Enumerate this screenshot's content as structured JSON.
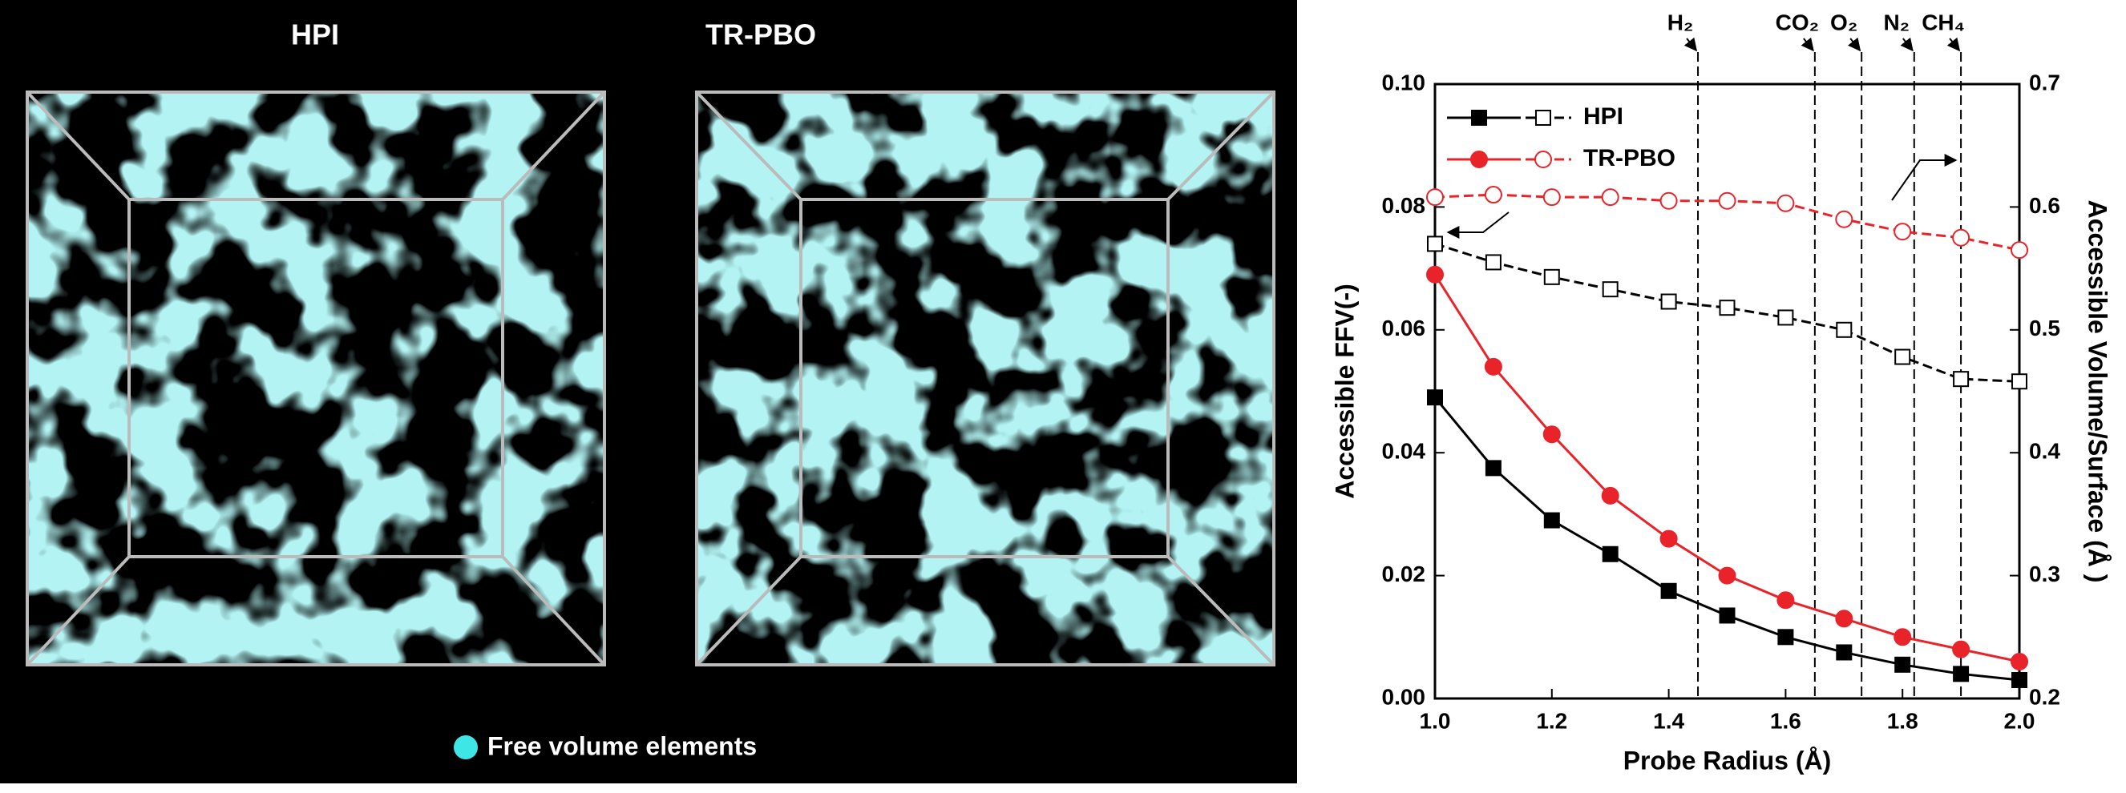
{
  "panels": {
    "left_title": "HPI",
    "right_title": "TR-PBO",
    "legend": "Free volume elements"
  },
  "chart_data": {
    "type": "line",
    "xlabel": "Probe Radius (Å)",
    "ylabel": "Accessible FFV(-)",
    "y2label": "Accessible Volume/Surface (Å )",
    "x": [
      1.0,
      1.1,
      1.2,
      1.3,
      1.4,
      1.5,
      1.6,
      1.7,
      1.8,
      1.9,
      2.0
    ],
    "series": [
      {
        "name": "HPI",
        "color": "#000000",
        "marker": "square",
        "filled": true,
        "dashed": false,
        "axis": "y",
        "values": [
          0.049,
          0.0375,
          0.029,
          0.0235,
          0.0175,
          0.0135,
          0.01,
          0.0075,
          0.0055,
          0.004,
          0.003
        ]
      },
      {
        "name": "TR-PBO",
        "color": "#e8242a",
        "marker": "circle",
        "filled": true,
        "dashed": false,
        "axis": "y",
        "values": [
          0.069,
          0.054,
          0.043,
          0.033,
          0.026,
          0.02,
          0.016,
          0.013,
          0.01,
          0.008,
          0.006
        ]
      },
      {
        "color": "#000000",
        "marker": "square",
        "filled": false,
        "dashed": true,
        "axis": "y2",
        "values": [
          0.57,
          0.555,
          0.543,
          0.533,
          0.523,
          0.518,
          0.51,
          0.5,
          0.478,
          0.46,
          0.458
        ]
      },
      {
        "color": "#e8242a",
        "marker": "circle",
        "filled": false,
        "dashed": true,
        "axis": "y2",
        "values": [
          0.608,
          0.61,
          0.608,
          0.608,
          0.605,
          0.605,
          0.603,
          0.59,
          0.58,
          0.575,
          0.565
        ]
      }
    ],
    "xlim": [
      1.0,
      2.0
    ],
    "xticks": [
      {
        "value": 1.0,
        "label": "1.0"
      },
      {
        "value": 1.2,
        "label": "1.2"
      },
      {
        "value": 1.4,
        "label": "1.4"
      },
      {
        "value": 1.6,
        "label": "1.6"
      },
      {
        "value": 1.8,
        "label": "1.8"
      },
      {
        "value": 2.0,
        "label": "2.0"
      }
    ],
    "ylim": [
      0,
      0.1
    ],
    "yticks": [
      {
        "value": 0,
        "label": "0.00"
      },
      {
        "value": 0.02,
        "label": "0.02"
      },
      {
        "value": 0.04,
        "label": "0.04"
      },
      {
        "value": 0.06,
        "label": "0.06"
      },
      {
        "value": 0.08,
        "label": "0.08"
      },
      {
        "value": 0.1,
        "label": "0.10"
      }
    ],
    "y2lim": [
      0.2,
      0.7
    ],
    "y2ticks": [
      0.2,
      0.3,
      0.4,
      0.5,
      0.6,
      0.7
    ],
    "reference_lines": [
      {
        "x": 1.45,
        "label": "H₂"
      },
      {
        "x": 1.65,
        "label": "CO₂"
      },
      {
        "x": 1.73,
        "label": "O₂"
      },
      {
        "x": 1.82,
        "label": "N₂"
      },
      {
        "x": 1.9,
        "label": "CH₄"
      }
    ]
  }
}
